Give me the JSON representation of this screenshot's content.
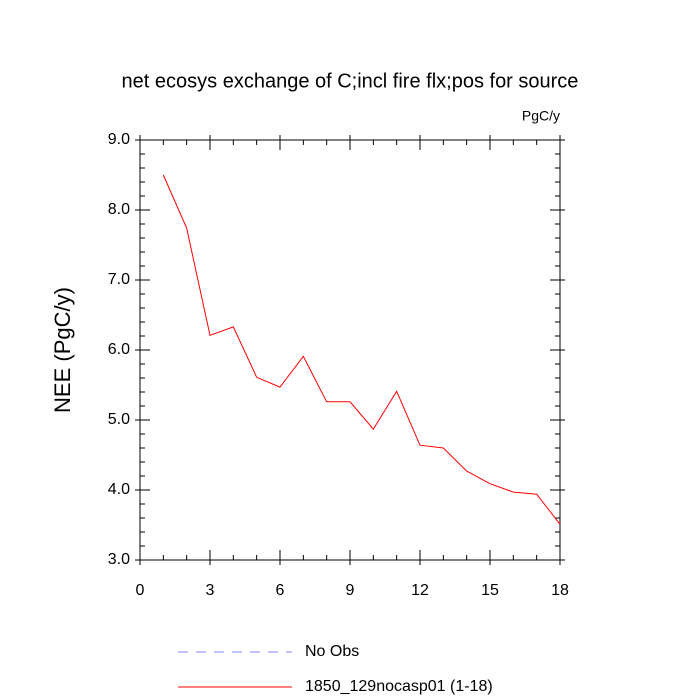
{
  "chart_data": {
    "type": "line",
    "title": "net ecosys exchange of C;incl fire flx;pos for source",
    "units_label": "PgC/y",
    "y_label": "NEE  (PgC/y)",
    "x": [
      1,
      2,
      3,
      4,
      5,
      6,
      7,
      8,
      9,
      10,
      11,
      12,
      13,
      14,
      15,
      16,
      17,
      18
    ],
    "series": [
      {
        "name": "1850_129nocasp01 (1-18)",
        "color": "#ff0000",
        "values": [
          8.5,
          7.74,
          6.21,
          6.33,
          5.61,
          5.47,
          5.91,
          5.26,
          5.26,
          4.87,
          5.41,
          4.64,
          4.6,
          4.27,
          4.09,
          3.97,
          3.94,
          3.51
        ]
      }
    ],
    "extra_legend": [
      {
        "name": "No Obs",
        "color": "#8080ff",
        "dashed": true
      }
    ],
    "xlim": [
      0,
      18
    ],
    "xticks": [
      0,
      3,
      6,
      9,
      12,
      15,
      18
    ],
    "xminorticks": [
      1,
      2,
      4,
      5,
      7,
      8,
      10,
      11,
      13,
      14,
      16,
      17
    ],
    "ylim": [
      3,
      9
    ],
    "yticks": [
      {
        "value": 3,
        "label": "3.0"
      },
      {
        "value": 4,
        "label": "4.0"
      },
      {
        "value": 5,
        "label": "5.0"
      },
      {
        "value": 6,
        "label": "6.0"
      },
      {
        "value": 7,
        "label": "7.0"
      },
      {
        "value": 8,
        "label": "8.0"
      },
      {
        "value": 9,
        "label": "9.0"
      }
    ],
    "yminorticks": [
      3.2,
      3.4,
      3.6,
      3.8,
      4.2,
      4.4,
      4.6,
      4.8,
      5.2,
      5.4,
      5.6,
      5.8,
      6.2,
      6.4,
      6.6,
      6.8,
      7.2,
      7.4,
      7.6,
      7.8,
      8.2,
      8.4,
      8.6,
      8.8
    ]
  }
}
